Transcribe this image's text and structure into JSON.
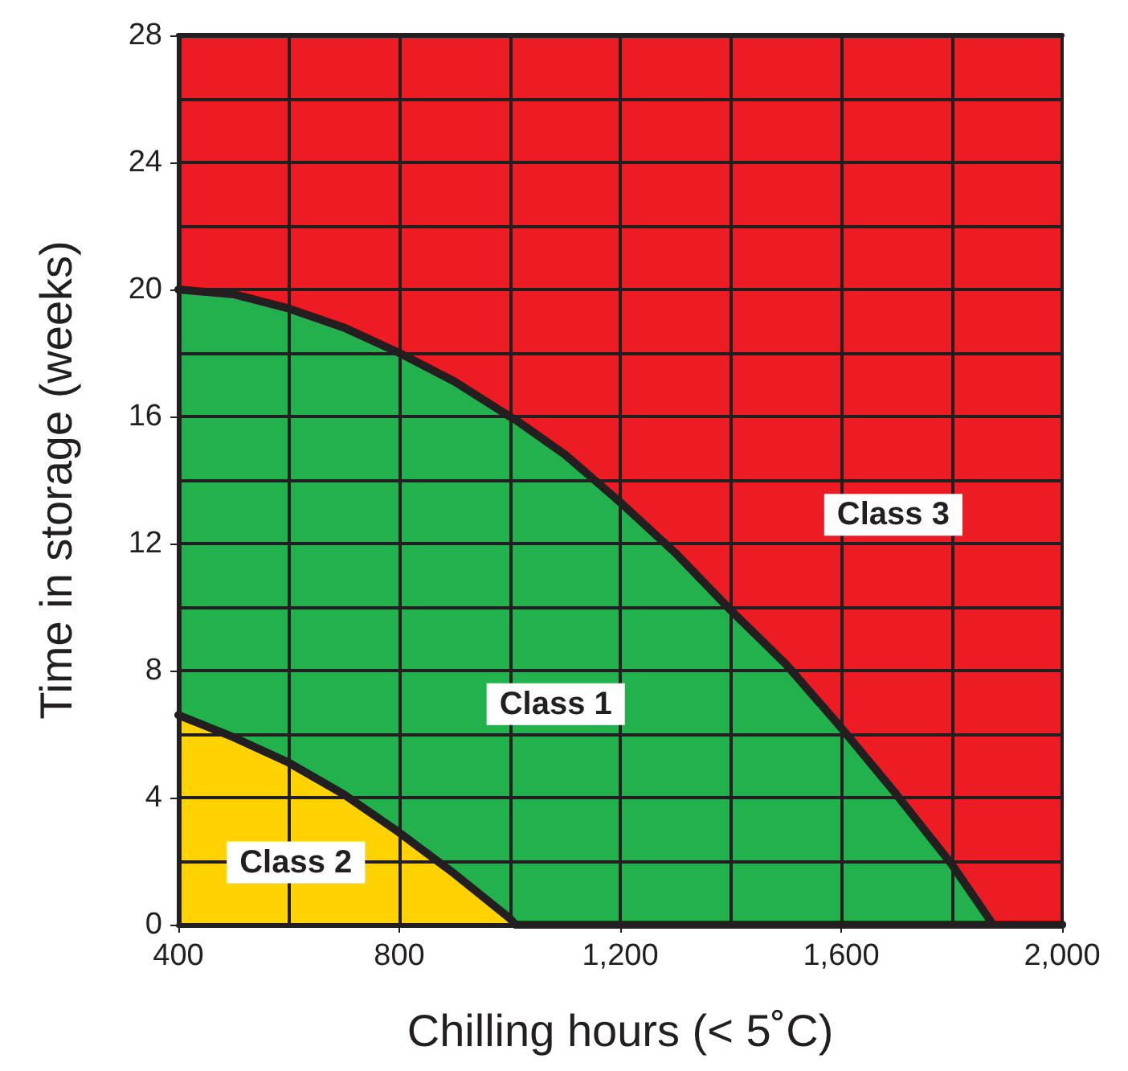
{
  "chart_data": {
    "type": "area",
    "stacked": true,
    "xlabel": "Chilling hours (< 5˚C)",
    "ylabel": "Time in storage (weeks)",
    "xlim": [
      400,
      2000
    ],
    "xticks": [
      400,
      800,
      {
        "value": 1200,
        "label": "1,200"
      },
      {
        "value": 1600,
        "label": "1,600"
      },
      {
        "value": 2000,
        "label": "2,000"
      }
    ],
    "ylim": [
      0,
      28
    ],
    "yticks": [
      0,
      4,
      8,
      12,
      16,
      20,
      24,
      28
    ],
    "grid": true,
    "x": [
      400,
      500,
      600,
      700,
      800,
      900,
      1000,
      1010,
      1100,
      1200,
      1300,
      1400,
      1500,
      1600,
      1700,
      1800,
      1875,
      1900,
      2000
    ],
    "series": [
      {
        "name": "Class 2",
        "color": "#ffd200",
        "values": [
          6.6,
          5.9,
          5.1,
          4.1,
          2.9,
          1.6,
          0.2,
          0,
          0,
          0,
          0,
          0,
          0,
          0,
          0,
          0,
          0,
          0,
          0
        ]
      },
      {
        "name": "Class 1",
        "color": "#22b14c",
        "values": [
          13.4,
          13.95,
          14.3,
          14.7,
          15.1,
          15.5,
          15.8,
          15.9,
          14.8,
          13.3,
          11.7,
          9.9,
          8.2,
          6.2,
          4.1,
          1.9,
          0,
          0,
          0
        ]
      },
      {
        "name": "Class 3",
        "color": "#ed1c24",
        "values": [
          8,
          8.15,
          8.6,
          9.2,
          10,
          10.9,
          12,
          12.1,
          13.2,
          14.7,
          16.3,
          18.1,
          19.8,
          21.8,
          23.9,
          26.1,
          28,
          28,
          28
        ]
      }
    ]
  }
}
